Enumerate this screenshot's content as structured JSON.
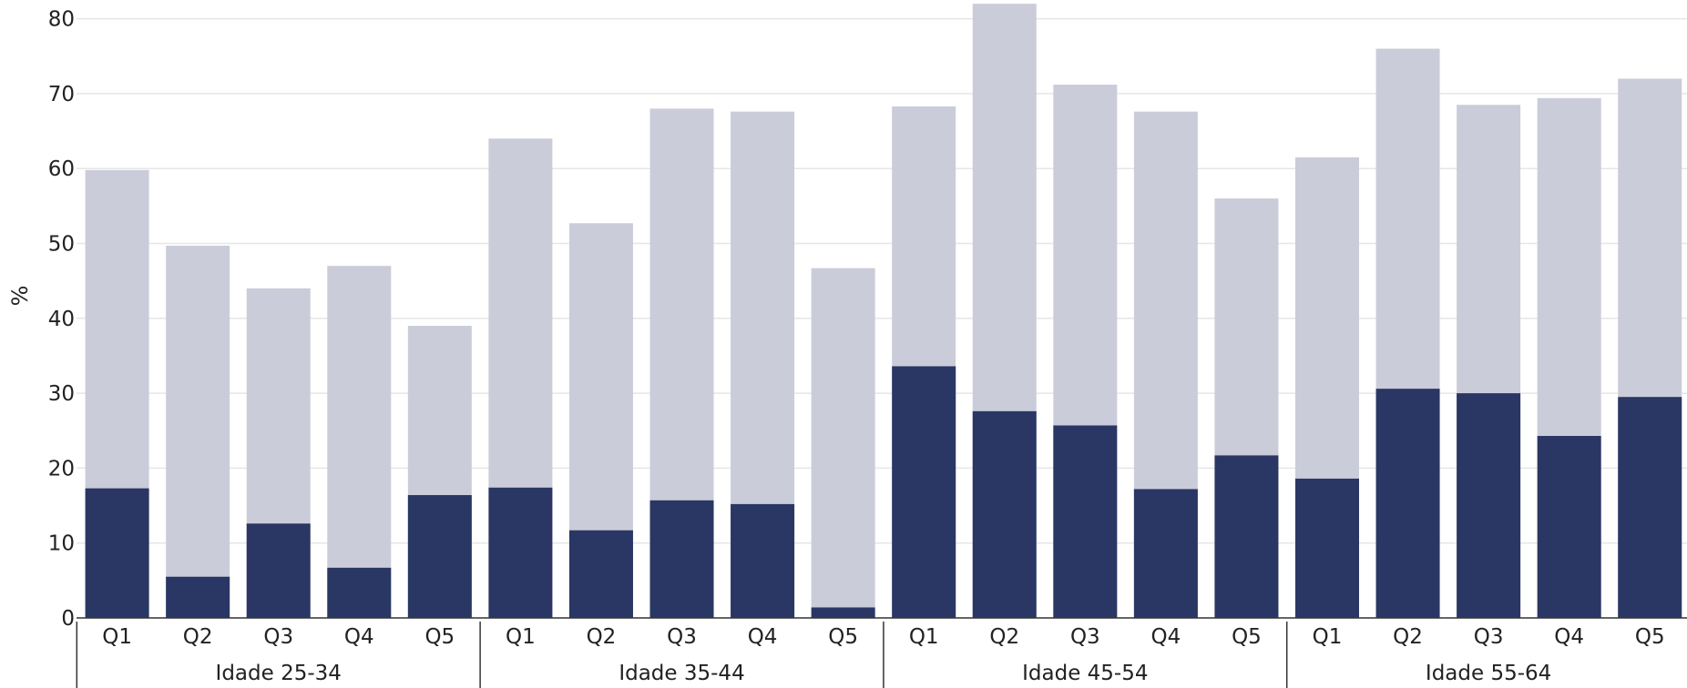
{
  "chart_data": {
    "type": "bar",
    "stacked": false,
    "overlapping_bars": true,
    "title": "",
    "ylabel": "%",
    "xlabel": "",
    "ylim": [
      0,
      82
    ],
    "yticks": [
      0,
      10,
      20,
      30,
      40,
      50,
      60,
      70,
      80
    ],
    "grid": "horizontal",
    "legend": "none",
    "groups": [
      "Idade 25-34",
      "Idade 35-44",
      "Idade 45-54",
      "Idade 55-64"
    ],
    "categories": [
      "Q1",
      "Q2",
      "Q3",
      "Q4",
      "Q5"
    ],
    "series": [
      {
        "color": "#cbccd9",
        "values": [
          [
            59.8,
            49.7,
            44.0,
            47.0,
            39.0
          ],
          [
            64.0,
            52.7,
            68.0,
            67.6,
            46.7
          ],
          [
            68.3,
            82.0,
            71.2,
            67.6,
            56.0
          ],
          [
            61.5,
            76.0,
            68.5,
            69.4,
            72.0
          ]
        ]
      },
      {
        "color": "#2a3764",
        "values": [
          [
            17.3,
            5.5,
            12.6,
            6.7,
            16.4
          ],
          [
            17.4,
            11.7,
            15.7,
            15.2,
            1.4
          ],
          [
            33.6,
            27.6,
            25.7,
            17.2,
            21.7
          ],
          [
            18.6,
            30.6,
            30.0,
            24.3,
            29.5
          ]
        ]
      }
    ]
  }
}
